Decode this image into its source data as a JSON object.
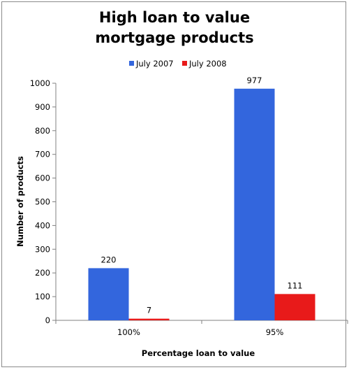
{
  "chart_data": {
    "type": "bar",
    "title_lines": [
      "High loan to value",
      "mortgage products"
    ],
    "categories": [
      "100%",
      "95%"
    ],
    "series": [
      {
        "name": "July 2007",
        "color": "#3366dd",
        "values": [
          220,
          977
        ]
      },
      {
        "name": "July 2008",
        "color": "#e81a1a",
        "values": [
          7,
          111
        ]
      }
    ],
    "xlabel": "Percentage loan to value",
    "ylabel": "Number of products",
    "ylim": [
      0,
      1000
    ],
    "yticks": [
      "0",
      "100",
      "200",
      "300",
      "400",
      "500",
      "600",
      "700",
      "800",
      "900",
      "1000"
    ],
    "data_labels": [
      [
        "220",
        "977"
      ],
      [
        "7",
        "111"
      ]
    ],
    "legend_position": "top",
    "grid": false
  }
}
